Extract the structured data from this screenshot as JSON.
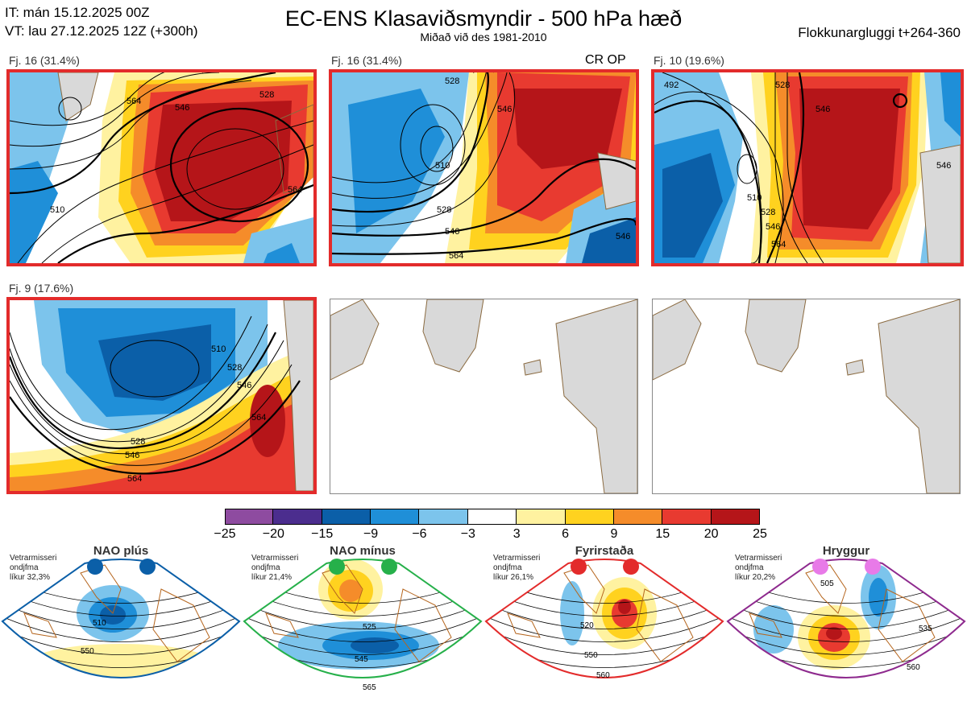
{
  "header": {
    "it_line": "IT: mán 15.12.2025 00Z",
    "vt_line": "VT: lau 27.12.2025 12Z  (+300h)",
    "title": "EC-ENS Klasaviðsmyndir - 500 hPa hæð",
    "subtitle": "Miðað við des 1981-2010",
    "window": "Flokkunargluggi t+264-360"
  },
  "panels": [
    {
      "label": "Fj. 16 (31.4%)",
      "extra": "",
      "contour_labels": [
        "528",
        "546",
        "564",
        "510",
        "564"
      ]
    },
    {
      "label": "Fj. 16 (31.4%)",
      "extra": "CR OP",
      "contour_labels": [
        "528",
        "546",
        "510",
        "528",
        "546",
        "564",
        "546"
      ]
    },
    {
      "label": "Fj. 10 (19.6%)",
      "extra": "",
      "contour_labels": [
        "492",
        "528",
        "546",
        "510",
        "528",
        "546",
        "564",
        "546"
      ]
    },
    {
      "label": "Fj. 9 (17.6%)",
      "extra": "",
      "contour_labels": [
        "510",
        "528",
        "546",
        "528",
        "546",
        "564",
        "564"
      ]
    }
  ],
  "colors": {
    "frame_red": "#e32b2b",
    "land": "#d9d9d9",
    "coast": "#8a6a40",
    "contour": "#000000"
  },
  "chart_data": {
    "type": "heatmap",
    "description_of_scale": "500 hPa height anomaly (dam) color scale",
    "colorbar": {
      "ticks": [
        "-25",
        "-20",
        "-15",
        "-9",
        "-6",
        "-3",
        "3",
        "6",
        "9",
        "15",
        "20",
        "25"
      ],
      "bin_colors": [
        "#8e4ba0",
        "#4b2d8e",
        "#0b5fa8",
        "#1f8fd8",
        "#7cc4ec",
        "#ffffff",
        "#fff2a0",
        "#ffd21f",
        "#f58c2a",
        "#e83a30",
        "#b51519"
      ]
    },
    "clusters": [
      {
        "number": 16,
        "percent": 31.4
      },
      {
        "number": 16,
        "percent": 31.4
      },
      {
        "number": 10,
        "percent": 19.6
      },
      {
        "number": 9,
        "percent": 17.6
      }
    ]
  },
  "regimes": [
    {
      "name": "NAO plús",
      "note": [
        "Vetrarmisseri",
        "ondjfma",
        "líkur 32,3%"
      ],
      "dot_color": "#0b5fa8",
      "frame_color": "#0b5fa8",
      "contour_labels": [
        "510",
        "550"
      ]
    },
    {
      "name": "NAO mínus",
      "note": [
        "Vetrarmisseri",
        "ondjfma",
        "líkur 21,4%"
      ],
      "dot_color": "#26b04a",
      "frame_color": "#26b04a",
      "contour_labels": [
        "525",
        "545",
        "565"
      ]
    },
    {
      "name": "Fyrirstaða",
      "note": [
        "Vetrarmisseri",
        "ondjfma",
        "líkur 26,1%"
      ],
      "dot_color": "#e32b2b",
      "frame_color": "#e32b2b",
      "contour_labels": [
        "520",
        "550",
        "560"
      ]
    },
    {
      "name": "Hryggur",
      "note": [
        "Vetrarmisseri",
        "ondjfma",
        "líkur 20,2%"
      ],
      "dot_color": "#e87ae8",
      "frame_color": "#8e2a8e",
      "contour_labels": [
        "505",
        "535",
        "560"
      ]
    }
  ]
}
